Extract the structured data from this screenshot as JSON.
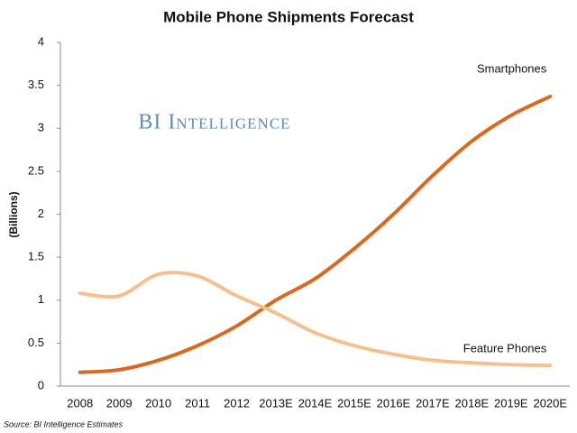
{
  "chart_data": {
    "type": "line",
    "title": "Mobile Phone Shipments Forecast",
    "y_label": "(Billions)",
    "source": "Source: BI Intelligence Estimates",
    "watermark": "BI Intelligence",
    "categories": [
      "2008",
      "2009",
      "2010",
      "2011",
      "2012",
      "2013E",
      "2014E",
      "2015E",
      "2016E",
      "2017E",
      "2018E",
      "2019E",
      "2020E"
    ],
    "series": [
      {
        "name": "Smartphones",
        "color": "#d9691e",
        "values": [
          0.16,
          0.19,
          0.3,
          0.47,
          0.7,
          1.0,
          1.25,
          1.6,
          2.0,
          2.45,
          2.85,
          3.15,
          3.37
        ]
      },
      {
        "name": "Feature Phones",
        "color": "#f5c08f",
        "values": [
          1.08,
          1.05,
          1.3,
          1.28,
          1.05,
          0.85,
          0.62,
          0.47,
          0.37,
          0.3,
          0.27,
          0.25,
          0.24
        ]
      }
    ],
    "ylim": [
      0,
      4
    ],
    "yticks": [
      0,
      0.5,
      1,
      1.5,
      2,
      2.5,
      3,
      3.5,
      4
    ],
    "grid": false
  }
}
